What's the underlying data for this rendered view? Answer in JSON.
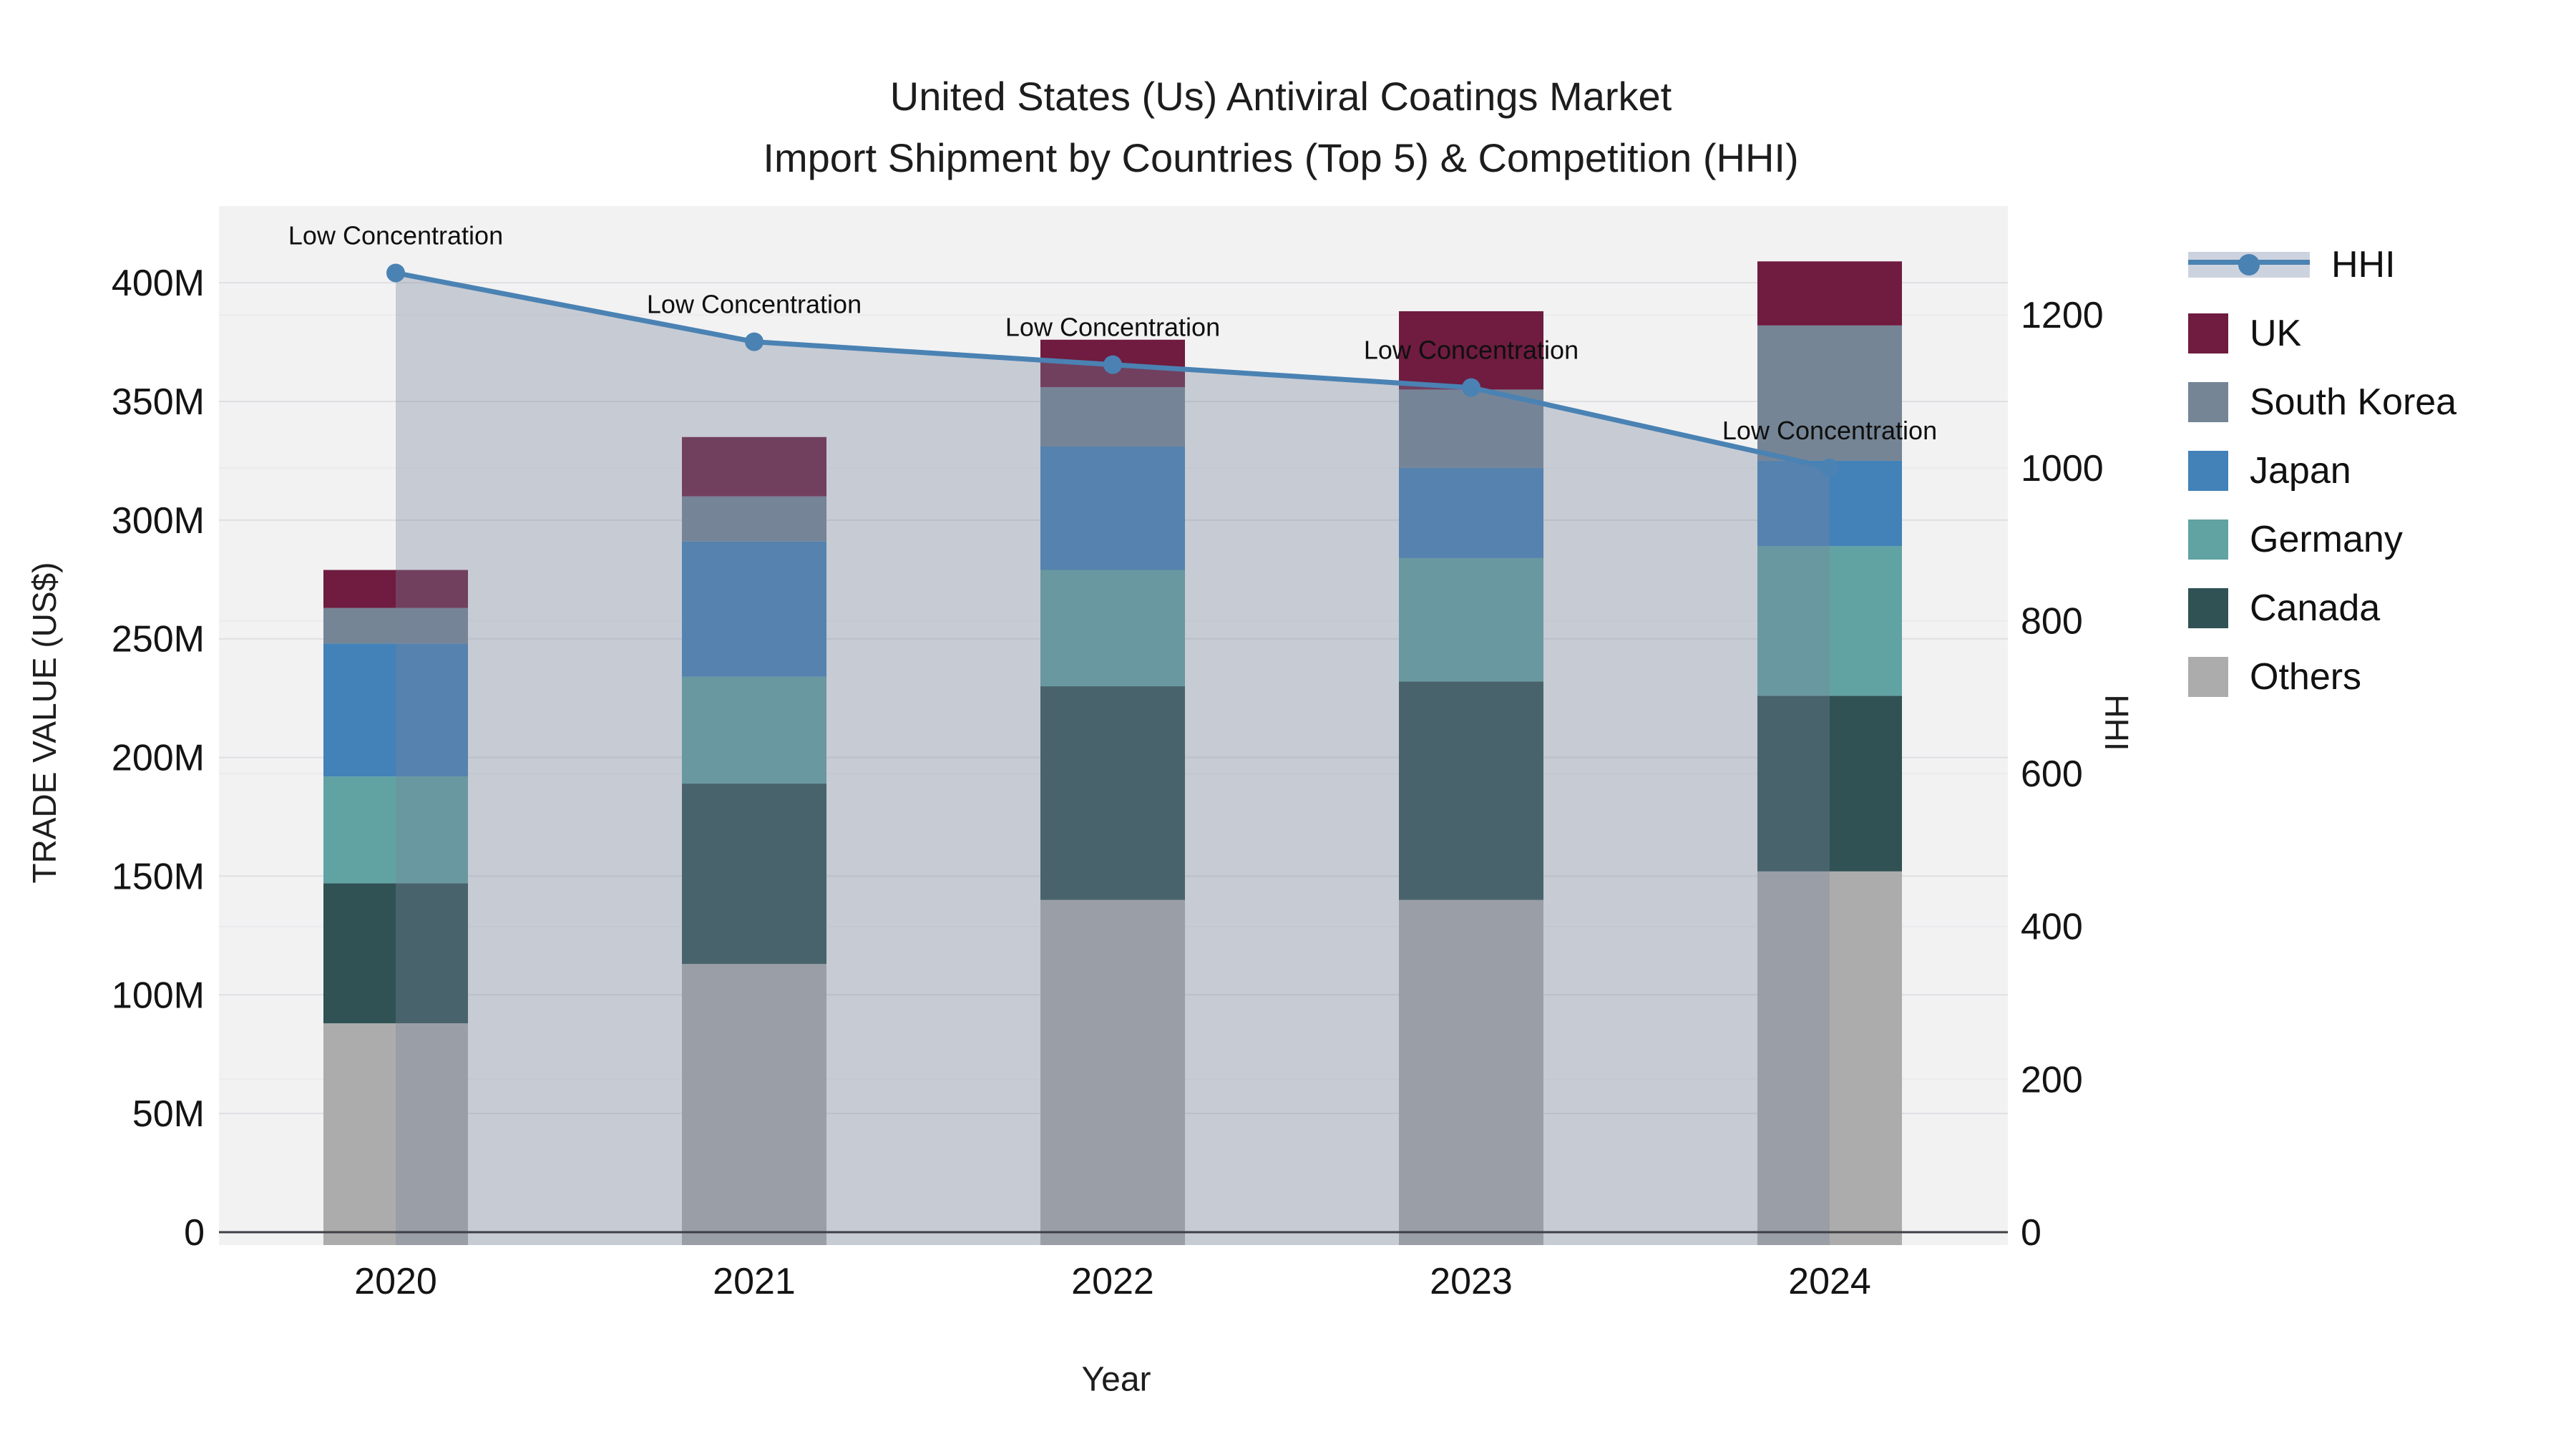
{
  "title": {
    "line1": "United States (Us) Antiviral Coatings Market",
    "line2": "Import Shipment by Countries (Top 5) & Competition (HHI)"
  },
  "axes": {
    "x": {
      "title": "Year",
      "categories": [
        "2020",
        "2021",
        "2022",
        "2023",
        "2024"
      ]
    },
    "y_left": {
      "title": "TRADE VALUE (US$)",
      "ticks": [
        {
          "label": "0",
          "value": 0
        },
        {
          "label": "50M",
          "value": 50
        },
        {
          "label": "100M",
          "value": 100
        },
        {
          "label": "150M",
          "value": 150
        },
        {
          "label": "200M",
          "value": 200
        },
        {
          "label": "250M",
          "value": 250
        },
        {
          "label": "300M",
          "value": 300
        },
        {
          "label": "350M",
          "value": 350
        },
        {
          "label": "400M",
          "value": 400
        }
      ]
    },
    "y_right": {
      "title": "HHI",
      "ticks": [
        {
          "label": "0",
          "value": 0
        },
        {
          "label": "200",
          "value": 200
        },
        {
          "label": "400",
          "value": 400
        },
        {
          "label": "600",
          "value": 600
        },
        {
          "label": "800",
          "value": 800
        },
        {
          "label": "1000",
          "value": 1000
        },
        {
          "label": "1200",
          "value": 1200
        }
      ]
    }
  },
  "legend": {
    "items": [
      {
        "id": "hhi",
        "label": "HHI",
        "type": "line"
      },
      {
        "id": "uk",
        "label": "UK",
        "type": "swatch",
        "color": "#6f1c40"
      },
      {
        "id": "south-korea",
        "label": "South Korea",
        "type": "swatch",
        "color": "#758595"
      },
      {
        "id": "japan",
        "label": "Japan",
        "type": "swatch",
        "color": "#4381b9"
      },
      {
        "id": "germany",
        "label": "Germany",
        "type": "swatch",
        "color": "#61a3a3"
      },
      {
        "id": "canada",
        "label": "Canada",
        "type": "swatch",
        "color": "#acacac"
      },
      {
        "id": "others",
        "label": "Others",
        "type": "swatch",
        "color": "#b3b3b3"
      }
    ]
  },
  "chart_data": {
    "type": "stacked-bar+line",
    "title": "United States (Us) Antiviral Coatings Market — Import Shipment by Countries (Top 5) & Competition (HHI)",
    "categories": [
      "2020",
      "2021",
      "2022",
      "2023",
      "2024"
    ],
    "bar_value_unit": "Million US$ (trade value)",
    "series": [
      {
        "name": "Others",
        "color": "#acacac",
        "values": [
          88,
          113,
          140,
          140,
          152
        ]
      },
      {
        "name": "Canada",
        "color": "#305254",
        "values": [
          59,
          76,
          90,
          92,
          74
        ]
      },
      {
        "name": "Germany",
        "color": "#61a3a3",
        "values": [
          45,
          45,
          49,
          52,
          63
        ]
      },
      {
        "name": "Japan",
        "color": "#4381b9",
        "values": [
          56,
          57,
          52,
          38,
          36
        ]
      },
      {
        "name": "South Korea",
        "color": "#758595",
        "values": [
          15,
          19,
          25,
          33,
          57
        ]
      },
      {
        "name": "UK",
        "color": "#6f1c40",
        "values": [
          16,
          25,
          20,
          33,
          27
        ]
      }
    ],
    "bar_totals": [
      279,
      335,
      376,
      388,
      409
    ],
    "line_series": {
      "name": "HHI",
      "color": "#4a82b3",
      "values": [
        1255,
        1165,
        1135,
        1105,
        1000
      ],
      "area_color": "rgba(120,133,155,0.35)"
    },
    "annotations": [
      {
        "text": "Low Concentration",
        "x": "2020"
      },
      {
        "text": "Low Concentration",
        "x": "2021"
      },
      {
        "text": "Low Concentration",
        "x": "2022"
      },
      {
        "text": "Low Concentration",
        "x": "2023"
      },
      {
        "text": "Low Concentration",
        "x": "2024"
      }
    ],
    "xlabel": "Year",
    "ylabel": "TRADE VALUE (US$)",
    "y2label": "HHI",
    "ylim": [
      0,
      432.3
    ],
    "y2lim": [
      0,
      1342.5
    ],
    "grid": true,
    "legend_position": "right-top-outside",
    "colors": {
      "panel": "#f2f2f3",
      "grid_primary": "#dfdfe3",
      "grid_secondary": "#ebebee",
      "zeroline": "#3f3f46",
      "hhi_legend_band": "#cdd3de",
      "text": "#1a1a1a"
    }
  }
}
